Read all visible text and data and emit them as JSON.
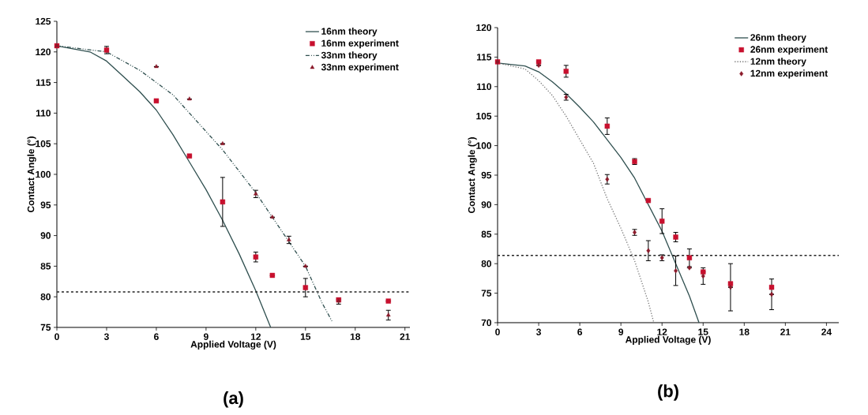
{
  "chart_data": [
    {
      "type": "line",
      "xlabel": "Applied Voltage (V)",
      "ylabel": "Contact Angle (°)",
      "annotations": [
        "(a)"
      ],
      "xlim": [
        0,
        21.3
      ],
      "ylim": [
        75,
        125
      ],
      "xticks": [
        0,
        3,
        6,
        9,
        12,
        15,
        18,
        21
      ],
      "yticks": [
        75,
        80,
        85,
        90,
        95,
        100,
        105,
        110,
        115,
        120,
        125
      ],
      "grid": false,
      "legend": "top right",
      "ref_lines": [
        {
          "axis": "y",
          "value": 80.8,
          "color": "#222222",
          "line_style": "dashed"
        }
      ],
      "series": [
        {
          "name": "16nm theory",
          "color": "#2f4f4f",
          "marker": "none",
          "line_style": "solid",
          "x": [
            0,
            2,
            3,
            4,
            5,
            6,
            7,
            8,
            9,
            10,
            11,
            12,
            12.9
          ],
          "values": [
            121,
            120,
            118.5,
            116,
            113.5,
            110.5,
            106.5,
            102,
            97.5,
            92.5,
            87,
            81,
            75
          ]
        },
        {
          "name": "16nm experiment",
          "type": "scatter",
          "color": "#c8102e",
          "marker": "square",
          "x": [
            0,
            3,
            6,
            8,
            10,
            12,
            13,
            15,
            17,
            20
          ],
          "values": [
            121,
            120.3,
            112,
            103,
            95.5,
            86.5,
            83.5,
            81.5,
            79.5,
            79.3
          ],
          "errors": [
            null,
            0.6,
            null,
            null,
            4,
            0.8,
            null,
            1.5,
            null,
            null
          ]
        },
        {
          "name": "33nm theory",
          "color": "#2f4f4f",
          "marker": "none",
          "line_style": "dashed",
          "x": [
            0,
            3,
            4,
            5,
            6,
            7,
            8,
            9,
            10,
            11,
            12,
            13,
            14,
            15,
            15.5,
            16,
            16.6
          ],
          "values": [
            121,
            120,
            118.5,
            117,
            115,
            113,
            110,
            107,
            104,
            100.5,
            97,
            93,
            89,
            85,
            82,
            79,
            76
          ]
        },
        {
          "name": "33nm experiment",
          "type": "scatter",
          "color": "#8b1a2a",
          "marker": "triangle",
          "x": [
            0,
            6,
            8,
            10,
            12,
            13,
            14,
            15,
            17,
            20
          ],
          "values": [
            121,
            117.6,
            112.3,
            105,
            96.8,
            93,
            89.3,
            85,
            79.3,
            77
          ],
          "errors": [
            null,
            null,
            null,
            null,
            0.6,
            null,
            0.6,
            null,
            0.5,
            0.8
          ]
        }
      ]
    },
    {
      "type": "line",
      "xlabel": "Applied Voltage (V)",
      "ylabel": "Contact Angle (°)",
      "annotations": [
        "(b)"
      ],
      "xlim": [
        0,
        24.9
      ],
      "ylim": [
        70,
        120
      ],
      "xticks": [
        0,
        3,
        6,
        9,
        12,
        15,
        18,
        21,
        24
      ],
      "yticks": [
        70,
        75,
        80,
        85,
        90,
        95,
        100,
        105,
        110,
        115,
        120
      ],
      "grid": false,
      "legend": "top right",
      "ref_lines": [
        {
          "axis": "y",
          "value": 81.4,
          "color": "#222222",
          "line_style": "dashed"
        }
      ],
      "series": [
        {
          "name": "26nm theory",
          "color": "#2f4f4f",
          "marker": "none",
          "line_style": "solid",
          "x": [
            0,
            2,
            3,
            4,
            5,
            6,
            7,
            8,
            9,
            10,
            11,
            12,
            13,
            14,
            14.7
          ],
          "values": [
            114,
            113.5,
            112.5,
            110.8,
            108.8,
            106.5,
            104,
            101,
            98,
            94.5,
            90,
            85.5,
            80,
            74.5,
            70
          ]
        },
        {
          "name": "26nm experiment",
          "type": "scatter",
          "color": "#c8102e",
          "marker": "square",
          "x": [
            0,
            3,
            5,
            8,
            10,
            11,
            12,
            13,
            14,
            15,
            17,
            20
          ],
          "values": [
            114.2,
            114.2,
            112.6,
            103.3,
            97.3,
            90.7,
            87.2,
            84.5,
            81,
            78.6,
            76.6,
            76
          ],
          "errors": [
            null,
            null,
            1,
            1.4,
            0.5,
            null,
            2.1,
            0.8,
            1.5,
            null,
            [
              72,
              80
            ],
            [
              72.2,
              77.4
            ]
          ]
        },
        {
          "name": "12nm theory",
          "color": "#777777",
          "marker": "none",
          "line_style": "dotted",
          "x": [
            0,
            2,
            3,
            4,
            5,
            6,
            7,
            8,
            9,
            10,
            10.5,
            11,
            11.4
          ],
          "values": [
            114,
            113,
            111,
            108.5,
            105,
            101,
            97,
            91,
            86,
            80.5,
            77,
            73.5,
            70
          ]
        },
        {
          "name": "12nm experiment",
          "type": "scatter",
          "color": "#8b1a2a",
          "marker": "diamond",
          "x": [
            0,
            3,
            5,
            8,
            10,
            11,
            12,
            13,
            14,
            15,
            17,
            20
          ],
          "values": [
            114.2,
            113.6,
            108.2,
            94.3,
            85.3,
            82.2,
            81,
            78.8,
            79.3,
            77.9,
            76,
            74.8
          ],
          "errors": [
            null,
            null,
            0.5,
            0.8,
            0.5,
            1.7,
            0.5,
            2.5,
            null,
            1.4,
            null,
            null
          ]
        }
      ]
    }
  ]
}
